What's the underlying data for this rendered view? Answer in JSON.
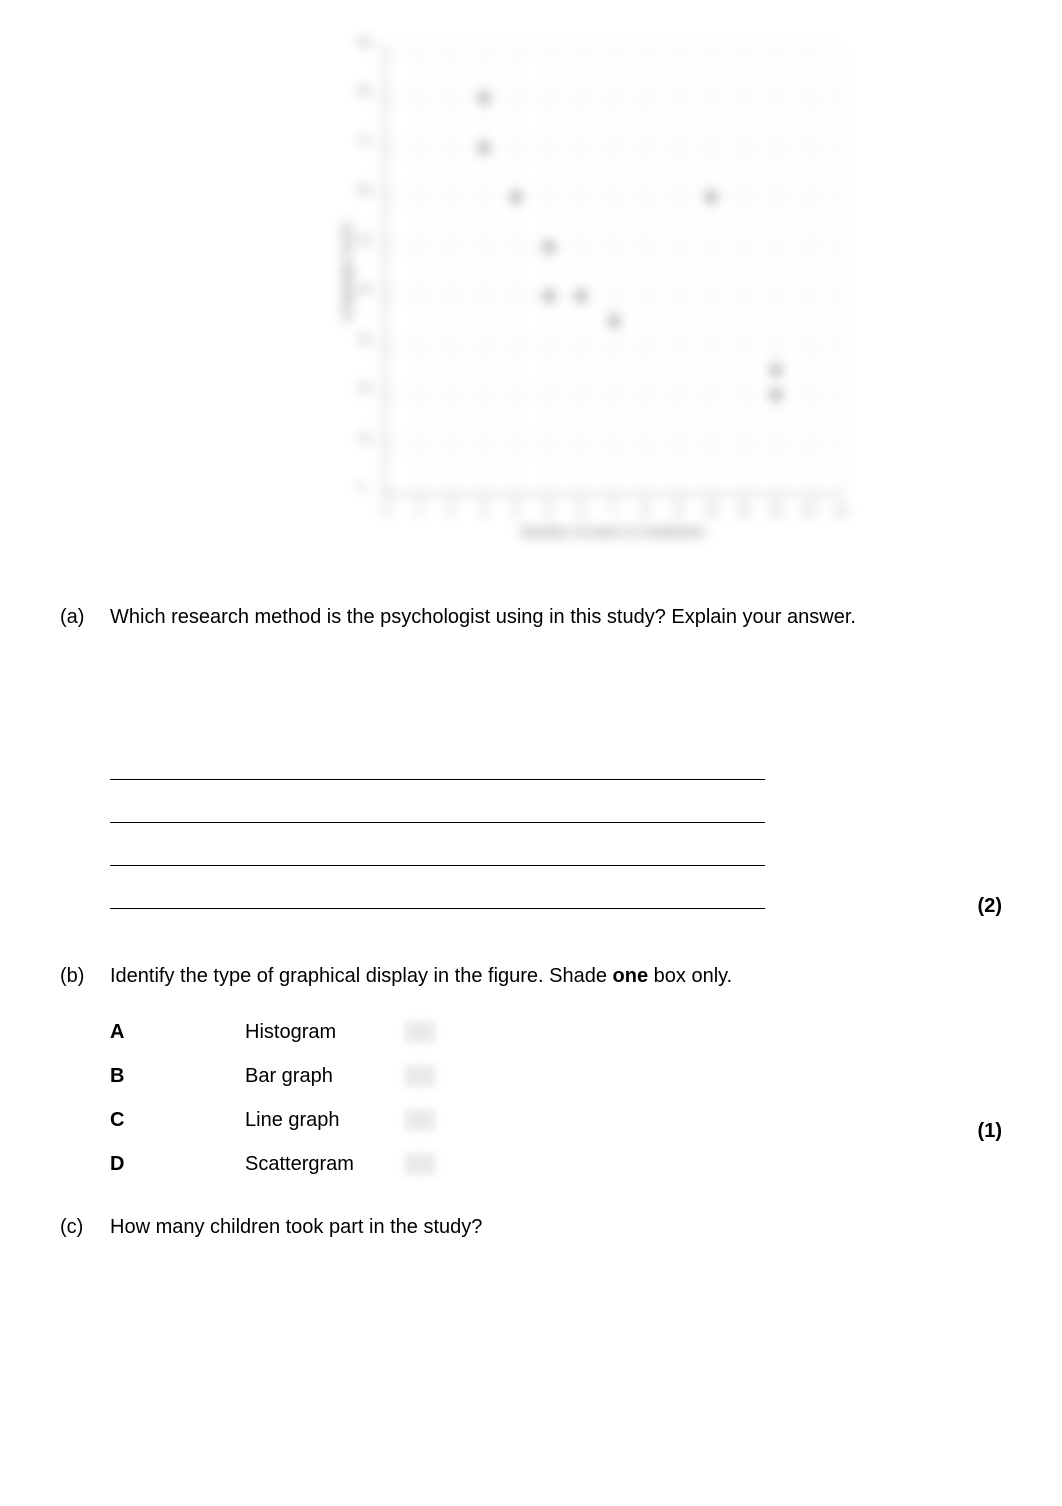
{
  "chart": {
    "type": "scatter",
    "ylabel": "Language\nscore",
    "xlabel": "Number of years in institution",
    "ylim": [
      0,
      90
    ],
    "xlim": [
      0,
      14
    ],
    "ytick_step": 10,
    "xtick_step": 1,
    "points": [
      {
        "x": 3,
        "y": 80
      },
      {
        "x": 3,
        "y": 70
      },
      {
        "x": 4,
        "y": 60
      },
      {
        "x": 5,
        "y": 50
      },
      {
        "x": 5,
        "y": 40
      },
      {
        "x": 6,
        "y": 40
      },
      {
        "x": 7,
        "y": 35
      },
      {
        "x": 10,
        "y": 60
      },
      {
        "x": 12,
        "y": 25
      },
      {
        "x": 12,
        "y": 20
      }
    ],
    "point_color": "#000000",
    "grid_color": "#bbbbbb",
    "axis_color": "#000000",
    "background_color": "#ffffff"
  },
  "questions": {
    "a": {
      "label": "(a)",
      "text": "Which research method is the psychologist using in this study? Explain your answer.",
      "marks": "(2)"
    },
    "b": {
      "label": "(b)",
      "text_prefix": "Identify the type of graphical display in the figure. Shade ",
      "text_bold": "one",
      "text_suffix": " box only.",
      "marks": "(1)",
      "options": [
        {
          "letter": "A",
          "text": "Histogram"
        },
        {
          "letter": "B",
          "text": "Bar graph"
        },
        {
          "letter": "C",
          "text": "Line graph"
        },
        {
          "letter": "D",
          "text": "Scattergram"
        }
      ]
    },
    "c": {
      "label": "(c)",
      "text": "How many children took part in the study?"
    }
  }
}
